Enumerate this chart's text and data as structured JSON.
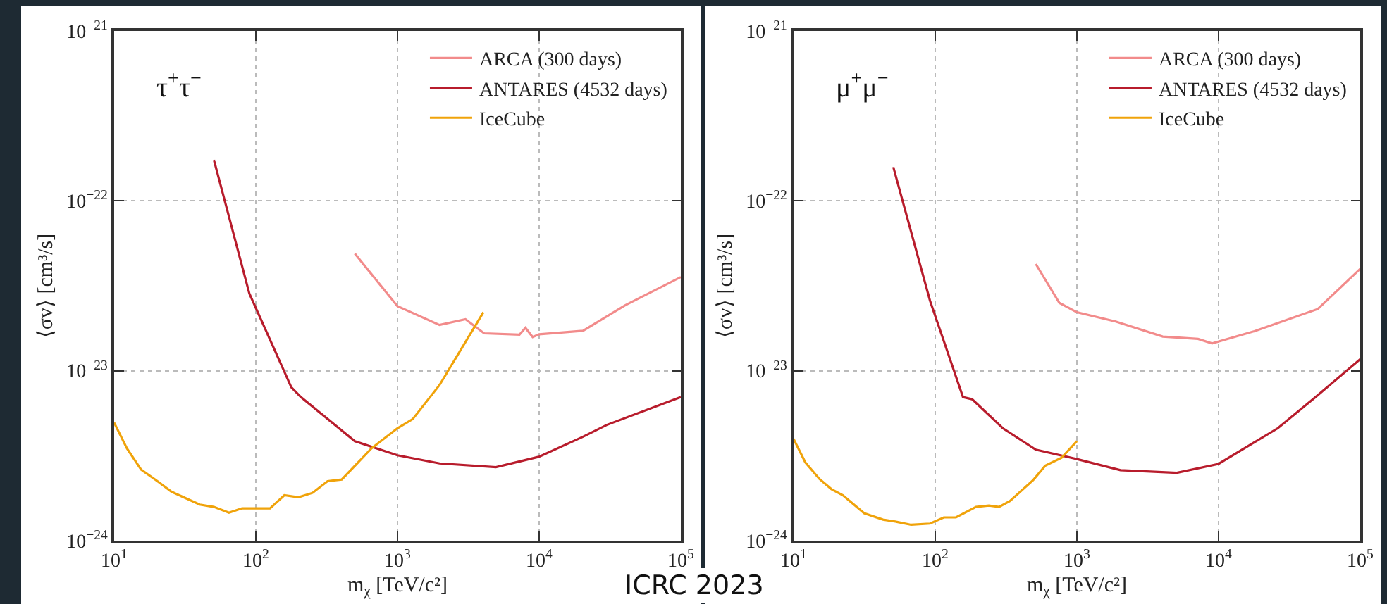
{
  "chart_data": [
    {
      "type": "line",
      "title": "τ$^{+}$τ$^{−}$",
      "xlabel": "m$_{χ}$ [TeV/c²]",
      "ylabel": "⟨σv⟩ [cm³/s]",
      "log": "xy",
      "grid": true,
      "legend": "top right",
      "line_style": "solid",
      "marker": "none",
      "xlim": [
        10,
        100000
      ],
      "ylim": [
        1e-24,
        1e-21
      ],
      "xticks": [
        {
          "value": 10,
          "label": "10$^{1}$"
        },
        {
          "value": 100,
          "label": "10$^{2}$"
        },
        {
          "value": 1000,
          "label": "10$^{3}$"
        },
        {
          "value": 10000,
          "label": "10$^{4}$"
        },
        {
          "value": 100000,
          "label": "10$^{5}$"
        }
      ],
      "yticks": [
        {
          "value": 1e-24,
          "label": "10$^{−24}$"
        },
        {
          "value": 1e-23,
          "label": "10$^{−23}$"
        },
        {
          "value": 1e-22,
          "label": "10$^{−22}$"
        },
        {
          "value": 1e-21,
          "label": "10$^{−21}$"
        }
      ],
      "series": [
        {
          "name": "ARCA (300 days)",
          "color": "#f28b8b",
          "x": [
            500,
            1000,
            1980,
            3020,
            4090,
            7260,
            8000,
            9000,
            10000,
            20400,
            40500,
            100000
          ],
          "values": [
            4.89e-23,
            2.4e-23,
            1.86e-23,
            2.01e-23,
            1.66e-23,
            1.63e-23,
            1.79e-23,
            1.58e-23,
            1.64e-23,
            1.72e-23,
            2.43e-23,
            3.56e-23
          ]
        },
        {
          "name": "ANTARES (4532 days)",
          "color": "#b81c2c",
          "x": [
            50.6,
            90,
            178,
            208,
            500,
            1000,
            1980,
            4950,
            10000,
            20400,
            30000,
            100000
          ],
          "values": [
            1.74e-22,
            2.85e-23,
            8e-24,
            7e-24,
            3.85e-24,
            3.18e-24,
            2.85e-24,
            2.71e-24,
            3.12e-24,
            4.09e-24,
            4.8e-24,
            7e-24
          ]
        },
        {
          "name": "IceCube",
          "color": "#f0a30a",
          "x": [
            10,
            12.3,
            15.5,
            20.2,
            25.4,
            40.2,
            50.6,
            64.6,
            80,
            126,
            159,
            200,
            251,
            321,
            404,
            655,
            1000,
            1280,
            1980,
            4040
          ],
          "values": [
            4.95e-24,
            3.49e-24,
            2.62e-24,
            2.24e-24,
            1.94e-24,
            1.63e-24,
            1.58e-24,
            1.46e-24,
            1.55e-24,
            1.55e-24,
            1.85e-24,
            1.8e-24,
            1.91e-24,
            2.24e-24,
            2.29e-24,
            3.49e-24,
            4.59e-24,
            5.19e-24,
            8.24e-24,
            2.21e-23
          ]
        }
      ]
    },
    {
      "type": "line",
      "title": "μ$^{+}$μ$^{−}$",
      "xlabel": "m$_{χ}$ [TeV/c²]",
      "ylabel": "⟨σv⟩ [cm³/s]",
      "log": "xy",
      "grid": true,
      "legend": "top right",
      "line_style": "solid",
      "marker": "none",
      "xlim": [
        10,
        100000
      ],
      "ylim": [
        1e-24,
        1e-21
      ],
      "xticks": [
        {
          "value": 10,
          "label": "10$^{1}$"
        },
        {
          "value": 100,
          "label": "10$^{2}$"
        },
        {
          "value": 1000,
          "label": "10$^{3}$"
        },
        {
          "value": 10000,
          "label": "10$^{4}$"
        },
        {
          "value": 100000,
          "label": "10$^{5}$"
        }
      ],
      "yticks": [
        {
          "value": 1e-24,
          "label": "10$^{−24}$"
        },
        {
          "value": 1e-23,
          "label": "10$^{−23}$"
        },
        {
          "value": 1e-22,
          "label": "10$^{−22}$"
        },
        {
          "value": 1e-21,
          "label": "10$^{−21}$"
        }
      ],
      "annotations": [
        "ICRC 2023"
      ],
      "series": [
        {
          "name": "ARCA (300 days)",
          "color": "#f28b8b",
          "x": [
            513,
            752,
            1000,
            1880,
            4040,
            7160,
            9000,
            17900,
            50200,
            100000
          ],
          "values": [
            4.25e-23,
            2.51e-23,
            2.21e-23,
            1.95e-23,
            1.59e-23,
            1.54e-23,
            1.45e-23,
            1.71e-23,
            2.31e-23,
            3.98e-23
          ]
        },
        {
          "name": "ANTARES (4532 days)",
          "color": "#b81c2c",
          "x": [
            50.6,
            91.8,
            157,
            182,
            300,
            513,
            1000,
            2030,
            5070,
            10000,
            26200,
            48400,
            100000
          ],
          "values": [
            1.58e-22,
            2.59e-23,
            7e-24,
            6.8e-24,
            4.59e-24,
            3.43e-24,
            3.02e-24,
            2.6e-24,
            2.51e-24,
            2.83e-24,
            4.59e-24,
            7e-24,
            1.17e-23
          ]
        },
        {
          "name": "IceCube",
          "color": "#f0a30a",
          "x": [
            10,
            12.1,
            15.2,
            18.5,
            22.3,
            31.5,
            42.8,
            53.7,
            67.6,
            91.8,
            115,
            140,
            194,
            239,
            282,
            337,
            493,
            597,
            780,
            1000
          ],
          "values": [
            3.97e-24,
            2.89e-24,
            2.31e-24,
            2.01e-24,
            1.85e-24,
            1.45e-24,
            1.33e-24,
            1.29e-24,
            1.24e-24,
            1.26e-24,
            1.37e-24,
            1.37e-24,
            1.58e-24,
            1.61e-24,
            1.58e-24,
            1.71e-24,
            2.28e-24,
            2.76e-24,
            3.08e-24,
            3.85e-24
          ]
        }
      ]
    }
  ]
}
